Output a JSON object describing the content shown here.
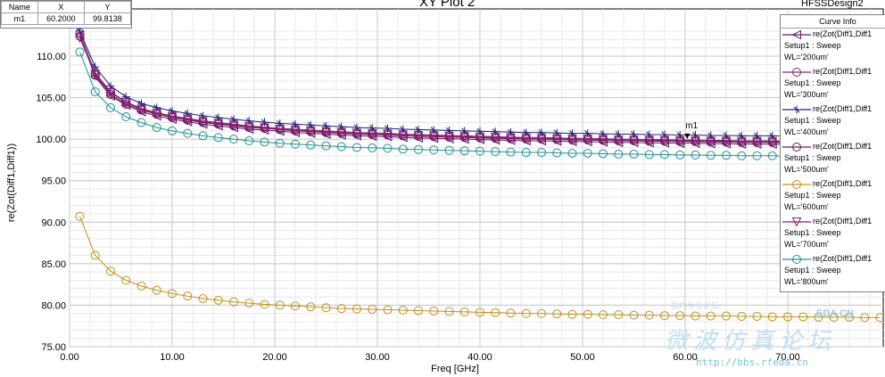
{
  "window": {
    "title": "XY Plot 2",
    "design": "HFSSDesign2"
  },
  "marker_table": {
    "headers": [
      "Name",
      "X",
      "Y"
    ],
    "rows": [
      [
        "m1",
        "60.2000",
        "99.8138"
      ]
    ]
  },
  "marker_label": "m1",
  "legend": {
    "title": "Curve Info",
    "items": [
      {
        "expr": "re(Zot(Diff1,Diff1",
        "setup": "Setup1 : Sweep",
        "param": "WL='200um'",
        "color": "#5a1a6a",
        "symbol": "triangle-left"
      },
      {
        "expr": "re(Zot(Diff1,Diff1",
        "setup": "Setup1 : Sweep",
        "param": "WL='300um'",
        "color": "#7a2a7a",
        "symbol": "circle"
      },
      {
        "expr": "re(Zot(Diff1,Diff1",
        "setup": "Setup1 : Sweep",
        "param": "WL='400um'",
        "color": "#202080",
        "symbol": "star"
      },
      {
        "expr": "re(Zot(Diff1,Diff1",
        "setup": "Setup1 : Sweep",
        "param": "WL='500um'",
        "color": "#6a1a5a",
        "symbol": "circle"
      },
      {
        "expr": "re(Zot(Diff1,Diff1",
        "setup": "Setup1 : Sweep",
        "param": "WL='600um'",
        "color": "#c09020",
        "symbol": "circle"
      },
      {
        "expr": "re(Zot(Diff1,Diff1",
        "setup": "Setup1 : Sweep",
        "param": "WL='700um'",
        "color": "#8a1a6a",
        "symbol": "triangle-down"
      },
      {
        "expr": "re(Zot(Diff1,Diff1",
        "setup": "Setup1 : Sweep",
        "param": "WL='800um'",
        "color": "#209090",
        "symbol": "circle"
      }
    ]
  },
  "watermark": {
    "small": "国内专业论坛",
    "logo": "EDA CN",
    "main": "微波仿真论坛",
    "url": "http://bbs.rfeda.cn"
  },
  "chart_data": {
    "type": "line",
    "xlabel": "Freq [GHz]",
    "ylabel": "re(Zot(Diff1,Diff1))",
    "xlim": [
      0,
      80
    ],
    "ylim": [
      75,
      113
    ],
    "grid": true,
    "legend_position": "right",
    "x_ticks": [
      "0.00",
      "10.00",
      "20.00",
      "30.00",
      "40.00",
      "50.00",
      "60.00",
      "70.00",
      "80"
    ],
    "y_ticks": [
      "75.00",
      "80.00",
      "85.00",
      "90.00",
      "95.00",
      "100.00",
      "105.00",
      "110.00"
    ],
    "x": [
      1.0,
      2.5,
      4.0,
      5.5,
      7.0,
      8.5,
      10.0,
      11.5,
      13.0,
      14.5,
      16.0,
      17.5,
      19.0,
      20.5,
      22.0,
      23.5,
      25.0,
      26.5,
      28.0,
      29.5,
      31.0,
      32.5,
      34.0,
      35.5,
      37.0,
      38.5,
      40.0,
      41.5,
      43.0,
      44.5,
      46.0,
      47.5,
      49.0,
      50.5,
      52.0,
      53.5,
      55.0,
      56.5,
      58.0,
      59.5,
      61.0,
      62.5,
      64.0,
      65.5,
      67.0,
      68.5,
      70.0,
      71.5,
      73.0,
      74.5,
      76.0,
      77.5,
      79.0
    ],
    "series": [
      {
        "name": "WL='200um'",
        "values": [
          112.5,
          107.5,
          105.2,
          104.1,
          103.3,
          102.8,
          102.4,
          102.1,
          101.8,
          101.6,
          101.4,
          101.2,
          101.1,
          100.95,
          100.8,
          100.7,
          100.6,
          100.5,
          100.4,
          100.35,
          100.3,
          100.2,
          100.15,
          100.1,
          100.05,
          100.0,
          99.95,
          99.9,
          99.85,
          99.8,
          99.8,
          99.75,
          99.7,
          99.7,
          99.65,
          99.6,
          99.6,
          99.55,
          99.55,
          99.5,
          99.5,
          99.45,
          99.45,
          99.4,
          99.4,
          99.4,
          99.35,
          99.35,
          99.3,
          99.3,
          99.3,
          99.25,
          99.25
        ]
      },
      {
        "name": "WL='300um'",
        "values": [
          112.8,
          108.0,
          105.7,
          104.5,
          103.7,
          103.2,
          102.8,
          102.5,
          102.2,
          102.0,
          101.8,
          101.6,
          101.45,
          101.3,
          101.2,
          101.1,
          101.0,
          100.9,
          100.8,
          100.75,
          100.7,
          100.6,
          100.55,
          100.5,
          100.45,
          100.4,
          100.35,
          100.3,
          100.25,
          100.2,
          100.2,
          100.15,
          100.1,
          100.1,
          100.05,
          100.0,
          100.0,
          99.95,
          99.95,
          99.9,
          99.9,
          99.85,
          99.85,
          99.8,
          99.8,
          99.8,
          99.75,
          99.75,
          99.7,
          99.7,
          99.7,
          99.65,
          99.65
        ]
      },
      {
        "name": "WL='400um'",
        "values": [
          113.0,
          108.7,
          106.4,
          105.1,
          104.3,
          103.8,
          103.4,
          103.1,
          102.8,
          102.6,
          102.4,
          102.2,
          102.05,
          101.9,
          101.8,
          101.7,
          101.6,
          101.5,
          101.4,
          101.35,
          101.3,
          101.2,
          101.15,
          101.1,
          101.05,
          101.0,
          100.95,
          100.9,
          100.85,
          100.8,
          100.8,
          100.75,
          100.7,
          100.7,
          100.65,
          100.6,
          100.6,
          100.55,
          100.55,
          100.5,
          100.5,
          100.45,
          100.45,
          100.4,
          100.4,
          100.4,
          100.35,
          100.35,
          100.3,
          100.3,
          100.3,
          100.25,
          100.25
        ]
      },
      {
        "name": "WL='500um'",
        "values": [
          112.4,
          107.7,
          105.4,
          104.2,
          103.5,
          103.0,
          102.6,
          102.3,
          102.0,
          101.8,
          101.6,
          101.4,
          101.3,
          101.15,
          101.0,
          100.9,
          100.8,
          100.7,
          100.6,
          100.55,
          100.5,
          100.4,
          100.35,
          100.3,
          100.25,
          100.2,
          100.15,
          100.1,
          100.05,
          100.0,
          100.0,
          99.95,
          99.9,
          99.9,
          99.85,
          99.8,
          99.8,
          99.75,
          99.75,
          99.7,
          99.7,
          99.65,
          99.65,
          99.6,
          99.6,
          99.6,
          99.55,
          99.55,
          99.5,
          99.5,
          99.5,
          99.45,
          99.45
        ]
      },
      {
        "name": "WL='600um'",
        "values": [
          90.7,
          86.0,
          84.1,
          83.0,
          82.3,
          81.8,
          81.4,
          81.1,
          80.8,
          80.6,
          80.4,
          80.25,
          80.1,
          80.0,
          79.9,
          79.8,
          79.7,
          79.6,
          79.55,
          79.5,
          79.45,
          79.4,
          79.35,
          79.3,
          79.25,
          79.2,
          79.15,
          79.1,
          79.05,
          79.0,
          79.0,
          78.95,
          78.9,
          78.9,
          78.85,
          78.85,
          78.8,
          78.8,
          78.75,
          78.75,
          78.7,
          78.7,
          78.7,
          78.65,
          78.65,
          78.6,
          78.6,
          78.6,
          78.55,
          78.55,
          78.55,
          78.5,
          78.5
        ]
      },
      {
        "name": "WL='700um'",
        "values": [
          112.2,
          107.8,
          105.6,
          104.4,
          103.6,
          103.1,
          102.7,
          102.4,
          102.1,
          101.9,
          101.7,
          101.5,
          101.35,
          101.2,
          101.1,
          101.0,
          100.9,
          100.8,
          100.7,
          100.65,
          100.6,
          100.5,
          100.45,
          100.4,
          100.35,
          100.3,
          100.25,
          100.2,
          100.15,
          100.1,
          100.1,
          100.05,
          100.0,
          100.0,
          99.95,
          99.9,
          99.9,
          99.85,
          99.85,
          99.8,
          99.8,
          99.75,
          99.75,
          99.7,
          99.7,
          99.7,
          99.65,
          99.65,
          99.6,
          99.6,
          99.6,
          99.55,
          99.55
        ]
      },
      {
        "name": "WL='800um'",
        "values": [
          110.5,
          105.7,
          103.8,
          102.7,
          102.0,
          101.4,
          101.0,
          100.7,
          100.4,
          100.2,
          100.0,
          99.8,
          99.65,
          99.5,
          99.4,
          99.3,
          99.2,
          99.1,
          99.0,
          98.95,
          98.9,
          98.8,
          98.75,
          98.7,
          98.65,
          98.6,
          98.55,
          98.5,
          98.45,
          98.4,
          98.4,
          98.35,
          98.3,
          98.3,
          98.25,
          98.2,
          98.2,
          98.15,
          98.15,
          98.1,
          98.1,
          98.05,
          98.05,
          98.0,
          98.0,
          98.0,
          97.95,
          97.95,
          97.9,
          97.9,
          97.9,
          97.85,
          97.85
        ]
      }
    ],
    "marker": {
      "name": "m1",
      "x": 60.2,
      "y": 99.8138
    }
  }
}
